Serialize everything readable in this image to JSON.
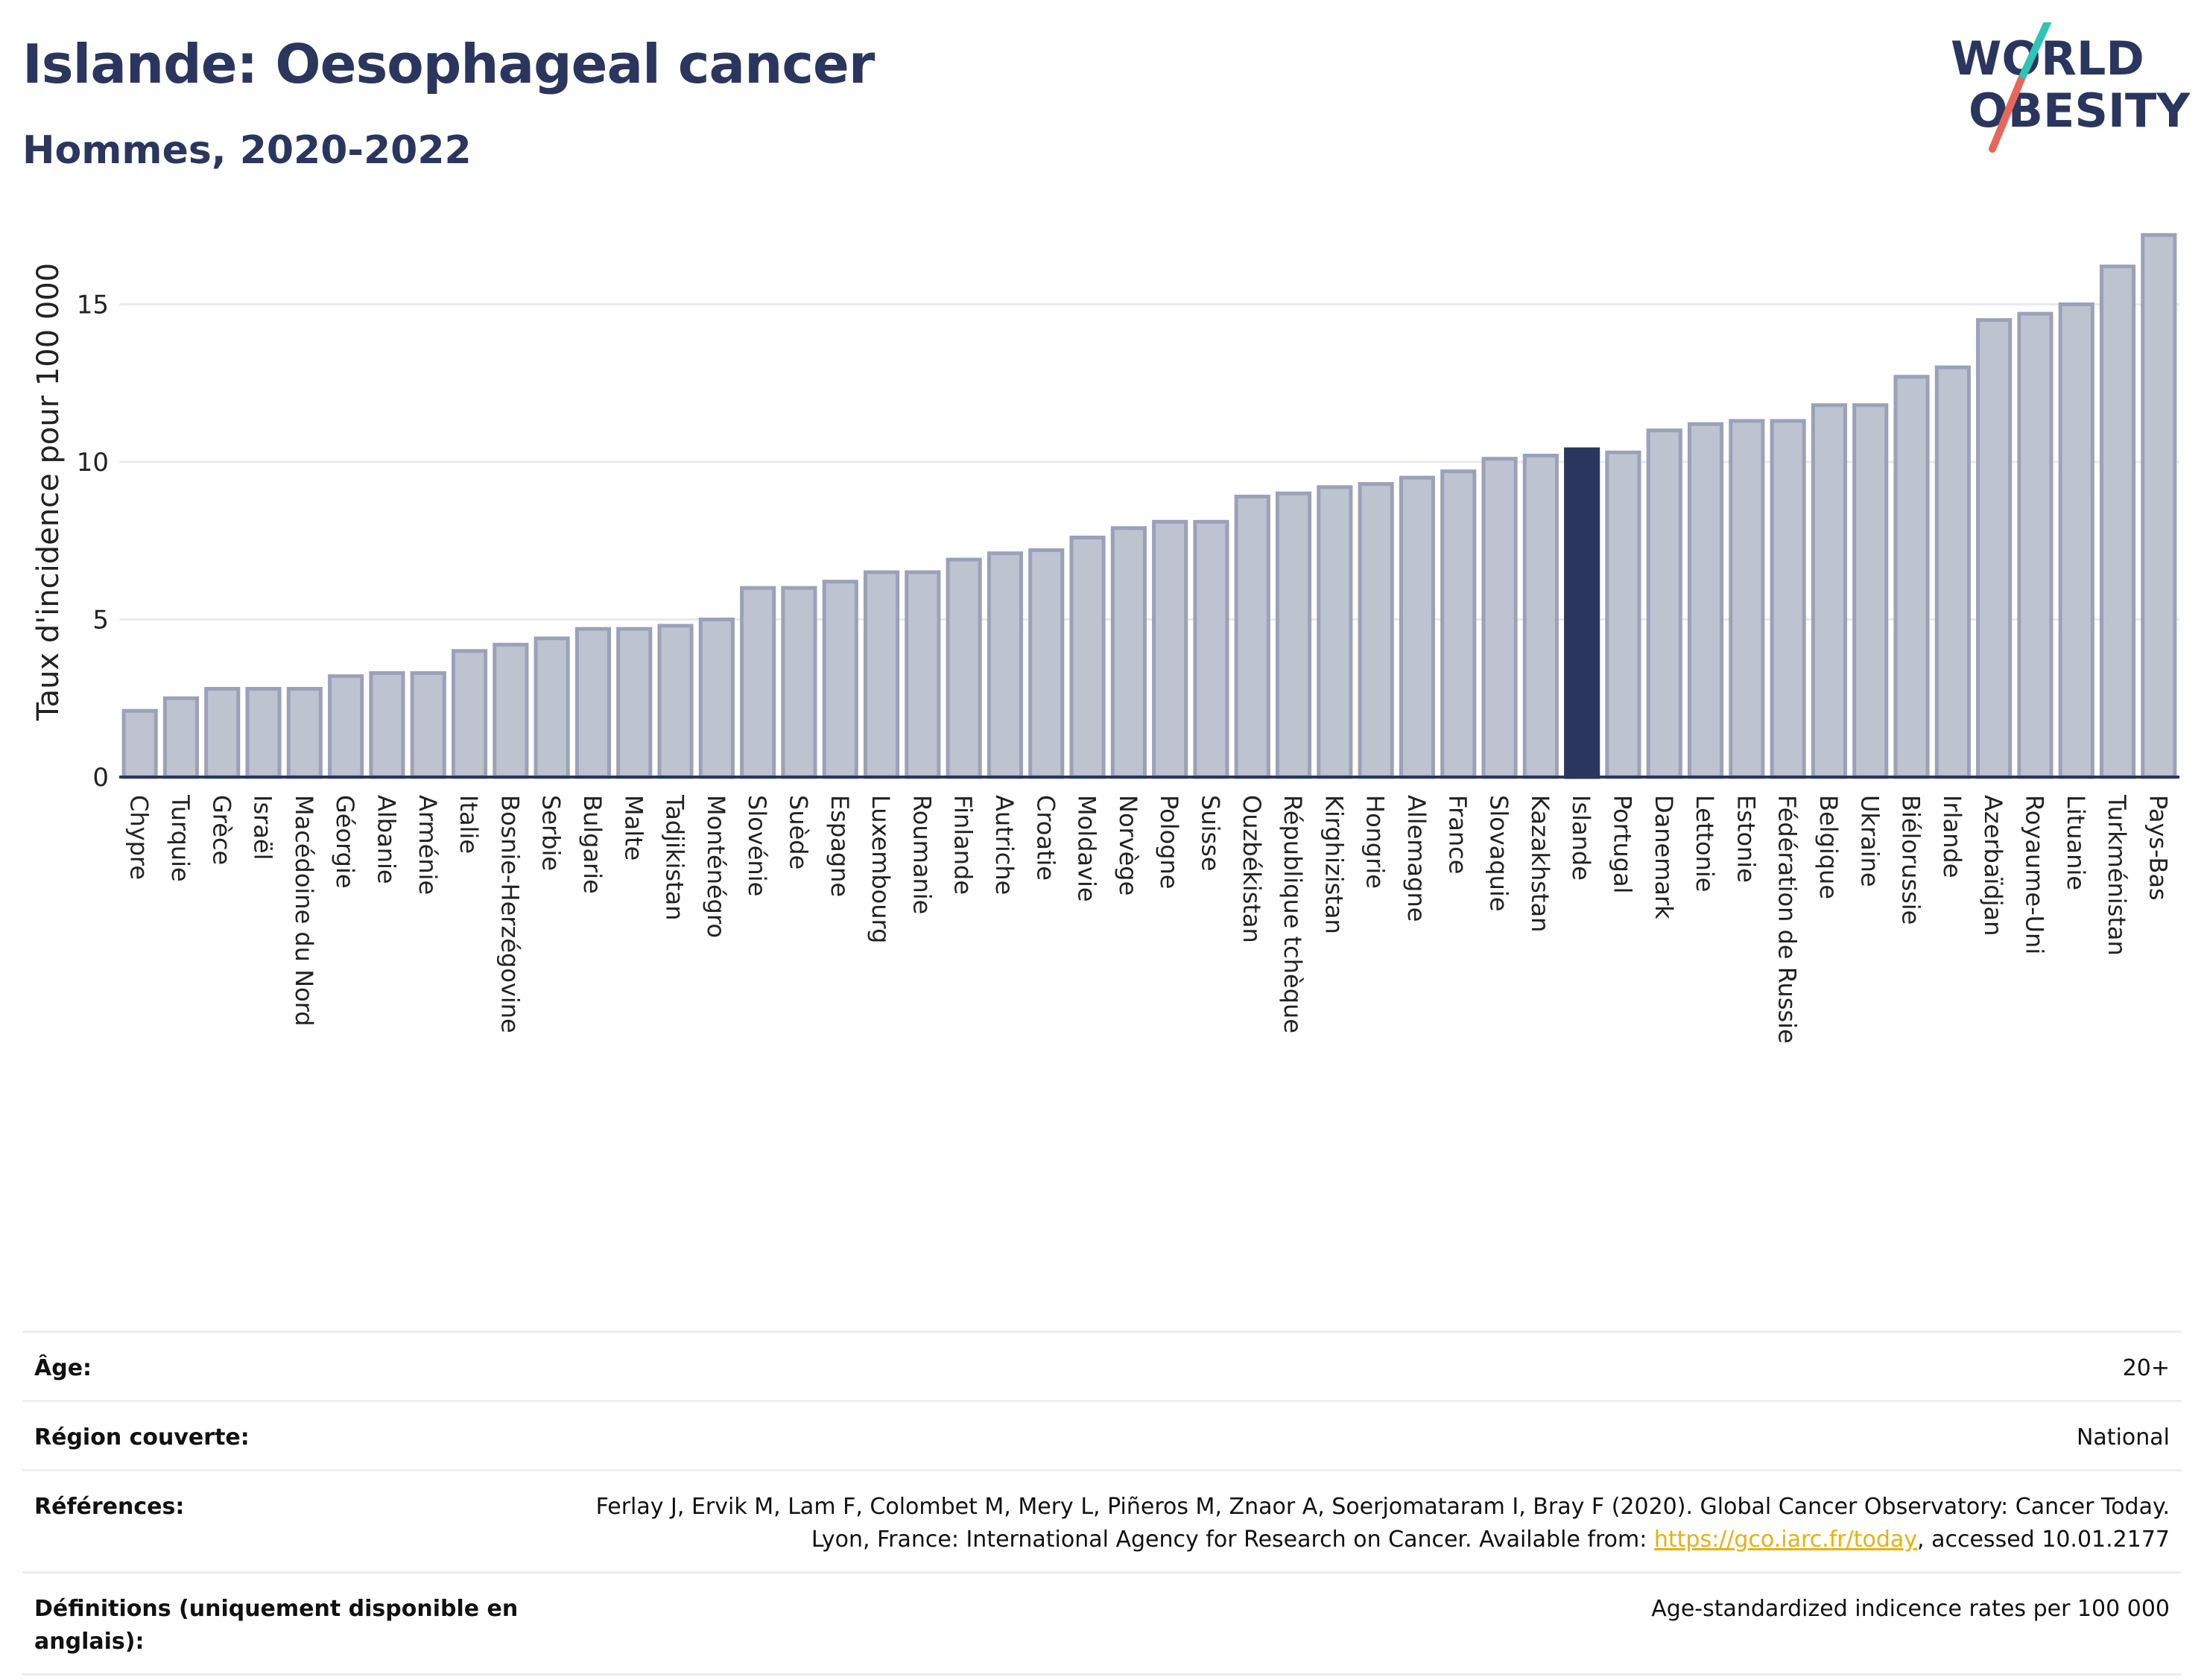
{
  "header": {
    "title": "Islande: Oesophageal cancer",
    "subtitle": "Hommes, 2020-2022"
  },
  "logo": {
    "line1": "WORLD",
    "line2": "OBESITY",
    "colors": {
      "text": "#2b365e",
      "slash_top": "#2ec4b6",
      "slash_bottom": "#e8665a"
    }
  },
  "chart_data": {
    "type": "bar",
    "ylabel": "Taux d'incidence pour 100 000",
    "ylim": [
      0,
      17.8
    ],
    "yticks": [
      0,
      5,
      10,
      15
    ],
    "grid": true,
    "highlight": "Islande",
    "colors": {
      "bar": "#bec3d0",
      "bar_edge": "#9aa1b8",
      "highlight": "#2b365e"
    },
    "categories": [
      "Chypre",
      "Turquie",
      "Grèce",
      "Israël",
      "Macédoine du Nord",
      "Géorgie",
      "Albanie",
      "Arménie",
      "Italie",
      "Bosnie-Herzégovine",
      "Serbie",
      "Bulgarie",
      "Malte",
      "Tadjikistan",
      "Monténégro",
      "Slovénie",
      "Suède",
      "Espagne",
      "Luxembourg",
      "Roumanie",
      "Finlande",
      "Autriche",
      "Croatie",
      "Moldavie",
      "Norvège",
      "Pologne",
      "Suisse",
      "Ouzbékistan",
      "République tchèque",
      "Kirghizistan",
      "Hongrie",
      "Allemagne",
      "France",
      "Slovaquie",
      "Kazakhstan",
      "Islande",
      "Portugal",
      "Danemark",
      "Lettonie",
      "Estonie",
      "Fédération de Russie",
      "Belgique",
      "Ukraine",
      "Biélorussie",
      "Irlande",
      "Azerbaïdjan",
      "Royaume-Uni",
      "Lituanie",
      "Turkménistan",
      "Pays-Bas"
    ],
    "values": [
      2.1,
      2.5,
      2.8,
      2.8,
      2.8,
      3.2,
      3.3,
      3.3,
      4.0,
      4.2,
      4.4,
      4.7,
      4.7,
      4.8,
      5.0,
      6.0,
      6.0,
      6.2,
      6.5,
      6.5,
      6.9,
      7.1,
      7.2,
      7.6,
      7.9,
      8.1,
      8.1,
      8.9,
      9.0,
      9.2,
      9.3,
      9.5,
      9.7,
      10.1,
      10.2,
      10.4,
      10.3,
      11.0,
      11.2,
      11.3,
      11.3,
      11.8,
      11.8,
      12.7,
      13.0,
      14.5,
      14.7,
      15.0,
      16.2,
      17.2
    ]
  },
  "info": [
    {
      "key": "Âge:",
      "value": "20+"
    },
    {
      "key": "Région couverte:",
      "value": "National"
    },
    {
      "key": "Références:",
      "value_pre": "Ferlay J, Ervik M, Lam F, Colombet M, Mery L, Piñeros M, Znaor A, Soerjomataram I, Bray F (2020). Global Cancer Observatory: Cancer Today. Lyon, France: International Agency for Research on Cancer. Available from: ",
      "link": "https://gco.iarc.fr/today",
      "value_post": ", accessed 10.01.2177"
    },
    {
      "key": "Définitions (uniquement disponible en anglais):",
      "value": "Age-standardized indicence rates per 100 000"
    }
  ]
}
